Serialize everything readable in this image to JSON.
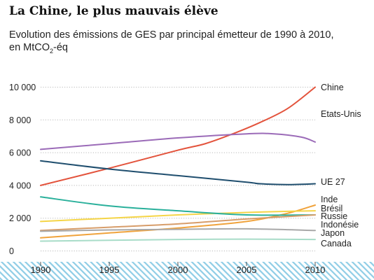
{
  "header": {
    "title": "La Chine, le plus mauvais élève",
    "subtitle_line1": "Evolution des émissions de GES par principal émetteur de 1990 à 2010,",
    "subtitle_line2_prefix": "en MtCO",
    "subtitle_line2_sub": "2",
    "subtitle_line2_suffix": "-éq"
  },
  "chart_data": {
    "type": "line",
    "title": "La Chine, le plus mauvais élève",
    "subtitle": "Evolution des émissions de GES par principal émetteur de 1990 à 2010, en MtCO2-éq",
    "xlabel": "",
    "ylabel": "",
    "xlim": [
      1990,
      2010
    ],
    "ylim": [
      0,
      10000
    ],
    "x_ticks": [
      "1990",
      "1995",
      "2000",
      "2005",
      "2010"
    ],
    "y_ticks": [
      "0",
      "2 000",
      "4 000",
      "6 000",
      "8 000",
      "10 000"
    ],
    "grid": "horizontal-dotted",
    "legend": "direct labels at right end of lines",
    "series": [
      {
        "name": "Chine",
        "color": "#e3533c",
        "x": [
          1990,
          1995,
          2000,
          2002,
          2004,
          2006,
          2008,
          2010
        ],
        "y": [
          4000,
          5050,
          6150,
          6550,
          7150,
          7850,
          8700,
          10000
        ]
      },
      {
        "name": "Etats-Unis",
        "color": "#9b6bb8",
        "x": [
          1990,
          1995,
          2000,
          2005,
          2007,
          2009,
          2010
        ],
        "y": [
          6200,
          6550,
          6900,
          7150,
          7150,
          6950,
          6650
        ]
      },
      {
        "name": "UE 27",
        "color": "#1f4e6e",
        "x": [
          1990,
          1995,
          2000,
          2005,
          2006,
          2008,
          2010
        ],
        "y": [
          5500,
          5000,
          4600,
          4200,
          4100,
          4050,
          4100
        ]
      },
      {
        "name": "Inde",
        "color": "#f0a33c",
        "x": [
          1990,
          1995,
          2000,
          2005,
          2008,
          2010
        ],
        "y": [
          800,
          1100,
          1400,
          1800,
          2300,
          2800
        ]
      },
      {
        "name": "Brésil",
        "color": "#f5d547",
        "x": [
          1990,
          1995,
          2000,
          2005,
          2007,
          2010
        ],
        "y": [
          1800,
          2000,
          2200,
          2350,
          2400,
          2450
        ]
      },
      {
        "name": "Russie",
        "color": "#2ab09b",
        "x": [
          1990,
          1995,
          2000,
          2005,
          2010
        ],
        "y": [
          3300,
          2750,
          2450,
          2200,
          2200
        ]
      },
      {
        "name": "Indonésie",
        "color": "#d79d6a",
        "x": [
          1990,
          1995,
          2000,
          2005,
          2010
        ],
        "y": [
          1250,
          1450,
          1650,
          1950,
          2200
        ]
      },
      {
        "name": "Japon",
        "color": "#a8a8a8",
        "x": [
          1990,
          1995,
          2000,
          2005,
          2010
        ],
        "y": [
          1200,
          1280,
          1320,
          1350,
          1250
        ]
      },
      {
        "name": "Canada",
        "color": "#a8dcc8",
        "x": [
          1990,
          1995,
          2000,
          2005,
          2010
        ],
        "y": [
          600,
          650,
          700,
          720,
          700
        ]
      }
    ]
  }
}
